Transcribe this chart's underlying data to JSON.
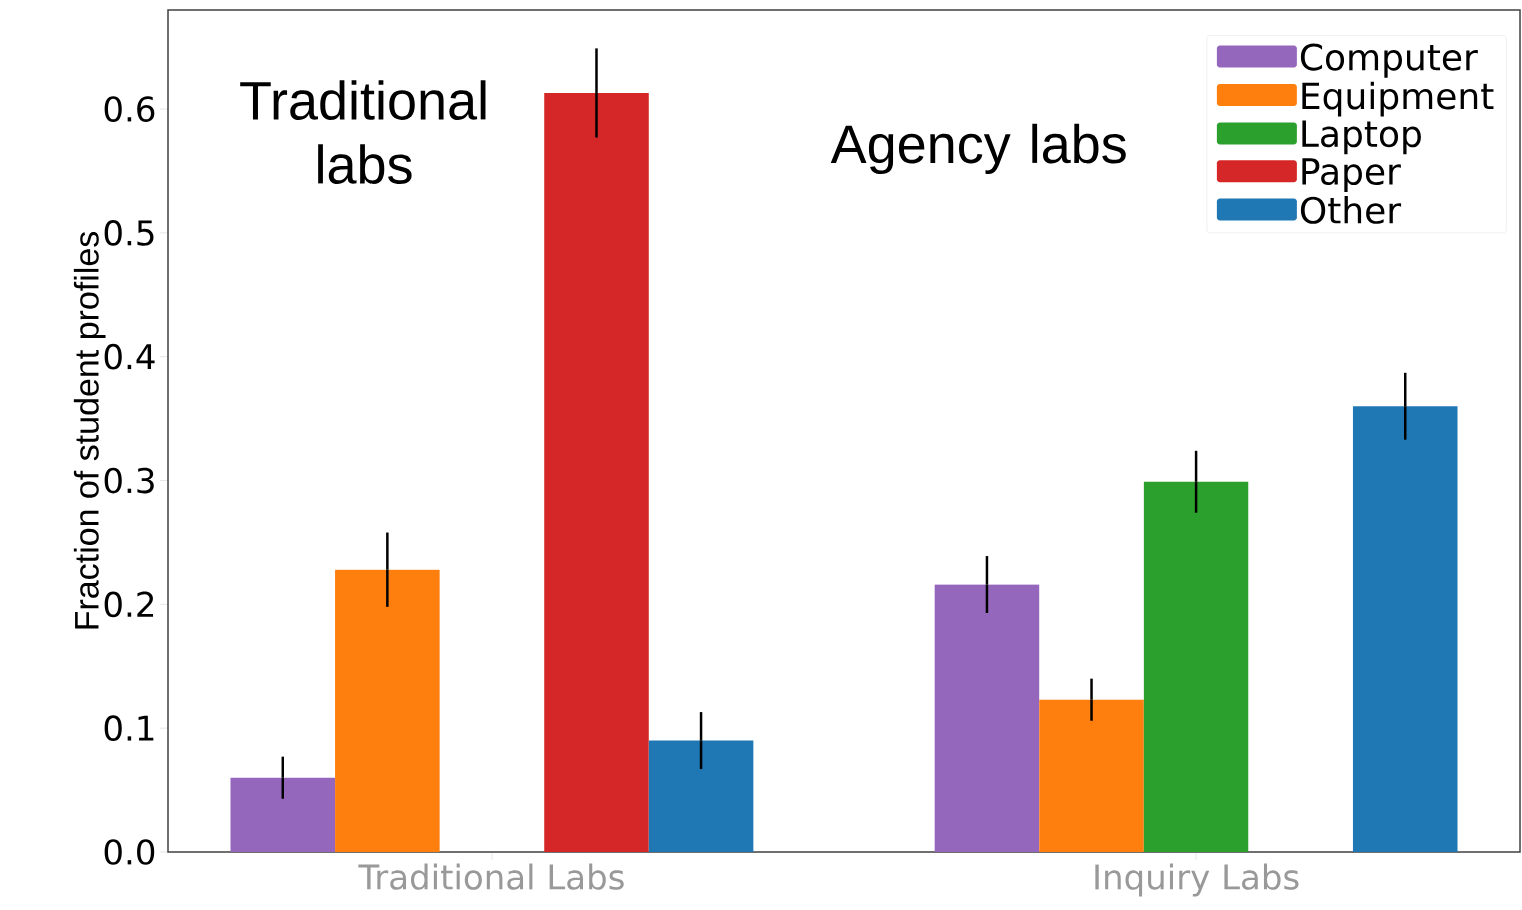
{
  "chart_data": {
    "type": "bar",
    "categories": [
      "Traditional Labs",
      "Inquiry Labs"
    ],
    "ylabel": "Fraction of student profiles",
    "ylim": [
      0,
      0.68
    ],
    "yticks": [
      {
        "value": 0,
        "label": "0.0"
      },
      0.1,
      0.2,
      0.3,
      0.4,
      0.5,
      0.6
    ],
    "series": [
      {
        "name": "Computer",
        "color": "#9467bd",
        "values": [
          0.06,
          0.216
        ],
        "errors": [
          0.017,
          0.023
        ]
      },
      {
        "name": "Equipment",
        "color": "#ff7f0e",
        "values": [
          0.228,
          0.123
        ],
        "errors": [
          0.03,
          0.017
        ]
      },
      {
        "name": "Laptop",
        "color": "#2ca02c",
        "values": [
          null,
          0.299
        ],
        "errors": [
          null,
          0.025
        ]
      },
      {
        "name": "Paper",
        "color": "#d62728",
        "values": [
          0.613,
          null
        ],
        "errors": [
          0.036,
          null
        ]
      },
      {
        "name": "Other",
        "color": "#1f77b4",
        "values": [
          0.09,
          0.36
        ],
        "errors": [
          0.023,
          0.027
        ]
      }
    ],
    "legend": "top right",
    "annotations": [
      "Traditional labs",
      "Agency labs"
    ]
  }
}
